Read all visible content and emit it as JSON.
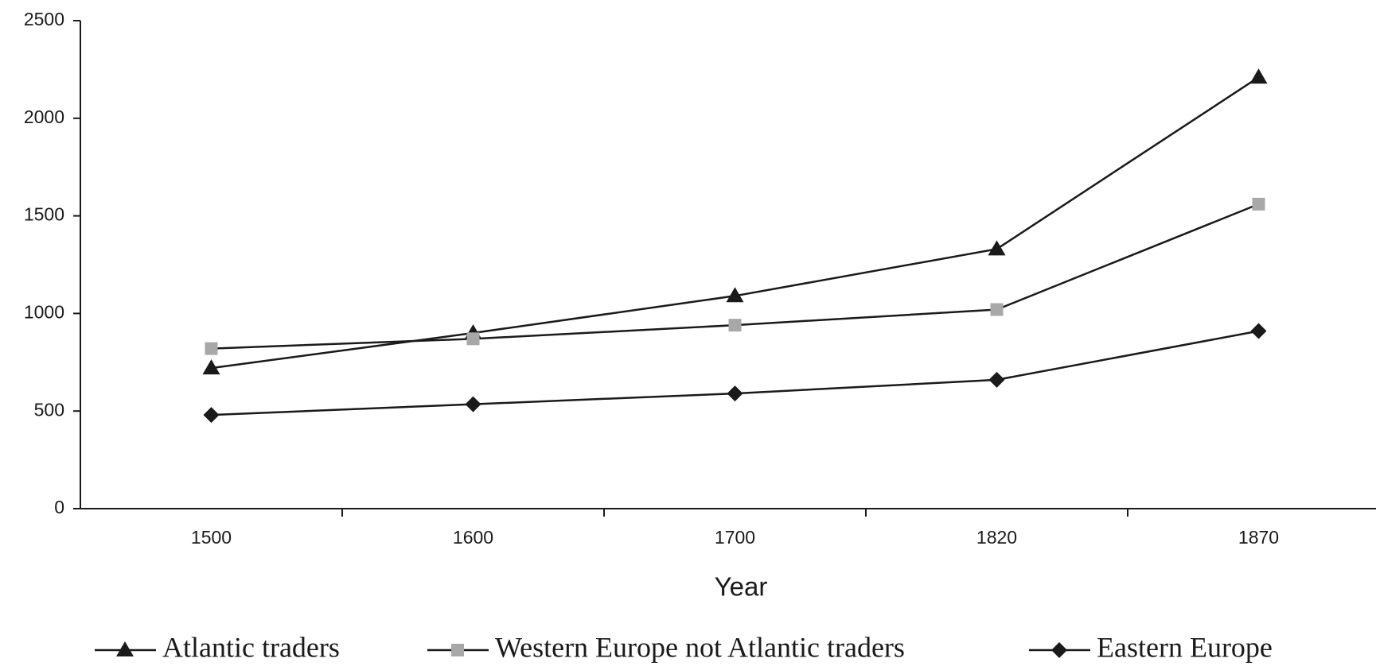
{
  "chart_data": {
    "type": "line",
    "x_label": "Year",
    "categories": [
      "1500",
      "1600",
      "1700",
      "1820",
      "1870"
    ],
    "series": [
      {
        "name": "Atlantic traders",
        "color": "#1a1a1a",
        "marker": "triangle",
        "marker_color": "#1a1a1a",
        "values": [
          720,
          900,
          1090,
          1330,
          2210
        ]
      },
      {
        "name": "Western Europe not Atlantic traders",
        "color": "#1a1a1a",
        "marker": "square",
        "marker_color": "#a8a8a8",
        "values": [
          820,
          870,
          940,
          1020,
          1560
        ]
      },
      {
        "name": "Eastern Europe",
        "color": "#1a1a1a",
        "marker": "diamond",
        "marker_color": "#1a1a1a",
        "values": [
          480,
          535,
          590,
          660,
          910
        ]
      }
    ],
    "ylim": [
      0,
      2500
    ],
    "yticks": [
      0,
      500,
      1000,
      1500,
      2000,
      2500
    ],
    "grid": false,
    "legend": "bottom"
  }
}
